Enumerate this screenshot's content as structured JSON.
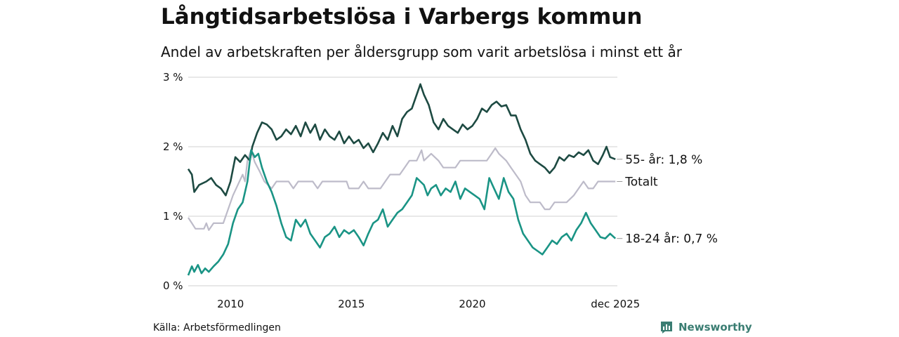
{
  "title": "Långtidsarbetslösa i Varbergs kommun",
  "subtitle": "Andel av arbetskraften per åldersgrupp som varit arbetslösa i minst ett år",
  "source": "Källa: Arbetsförmedlingen",
  "brand": "Newsworthy",
  "colors": {
    "series_55": "#1d4a42",
    "series_total": "#bdbbc9",
    "series_18_24": "#1a9485",
    "grid": "#d9d9d9",
    "brand": "#3a7d72"
  },
  "chart_data": {
    "type": "line",
    "title": "Långtidsarbetslösa i Varbergs kommun",
    "subtitle": "Andel av arbetskraften per åldersgrupp som varit arbetslösa i minst ett år",
    "xlabel": "",
    "ylabel": "",
    "ylim": [
      0,
      3
    ],
    "xlim": [
      2008.25,
      2026.0
    ],
    "grid": true,
    "y_ticks": [
      {
        "value": 0,
        "label": "0 %"
      },
      {
        "value": 1,
        "label": "1 %"
      },
      {
        "value": 2,
        "label": "2 %"
      },
      {
        "value": 3,
        "label": "3 %"
      }
    ],
    "x_ticks": [
      {
        "value": 2010,
        "label": "2010"
      },
      {
        "value": 2015,
        "label": "2015"
      },
      {
        "value": 2020,
        "label": "2020"
      },
      {
        "value": 2025.92,
        "label": "dec 2025"
      }
    ],
    "series": [
      {
        "name": "55- år",
        "end_label": "55- år: 1,8 %",
        "color_key": "series_55",
        "points": [
          [
            2008.25,
            1.68
          ],
          [
            2008.4,
            1.6
          ],
          [
            2008.5,
            1.35
          ],
          [
            2008.7,
            1.45
          ],
          [
            2009.0,
            1.5
          ],
          [
            2009.2,
            1.55
          ],
          [
            2009.4,
            1.45
          ],
          [
            2009.6,
            1.4
          ],
          [
            2009.8,
            1.3
          ],
          [
            2010.0,
            1.5
          ],
          [
            2010.2,
            1.85
          ],
          [
            2010.4,
            1.78
          ],
          [
            2010.6,
            1.88
          ],
          [
            2010.8,
            1.8
          ],
          [
            2010.9,
            2.0
          ],
          [
            2011.1,
            2.2
          ],
          [
            2011.3,
            2.35
          ],
          [
            2011.5,
            2.32
          ],
          [
            2011.7,
            2.25
          ],
          [
            2011.9,
            2.1
          ],
          [
            2012.1,
            2.15
          ],
          [
            2012.3,
            2.25
          ],
          [
            2012.5,
            2.18
          ],
          [
            2012.7,
            2.3
          ],
          [
            2012.9,
            2.15
          ],
          [
            2013.1,
            2.35
          ],
          [
            2013.3,
            2.2
          ],
          [
            2013.5,
            2.32
          ],
          [
            2013.7,
            2.1
          ],
          [
            2013.9,
            2.25
          ],
          [
            2014.1,
            2.15
          ],
          [
            2014.3,
            2.1
          ],
          [
            2014.5,
            2.22
          ],
          [
            2014.7,
            2.05
          ],
          [
            2014.9,
            2.15
          ],
          [
            2015.1,
            2.05
          ],
          [
            2015.3,
            2.1
          ],
          [
            2015.5,
            1.98
          ],
          [
            2015.7,
            2.05
          ],
          [
            2015.9,
            1.92
          ],
          [
            2016.1,
            2.05
          ],
          [
            2016.3,
            2.2
          ],
          [
            2016.5,
            2.1
          ],
          [
            2016.7,
            2.3
          ],
          [
            2016.9,
            2.15
          ],
          [
            2017.1,
            2.4
          ],
          [
            2017.3,
            2.5
          ],
          [
            2017.5,
            2.55
          ],
          [
            2017.7,
            2.75
          ],
          [
            2017.85,
            2.9
          ],
          [
            2018.0,
            2.75
          ],
          [
            2018.2,
            2.6
          ],
          [
            2018.4,
            2.35
          ],
          [
            2018.6,
            2.25
          ],
          [
            2018.8,
            2.4
          ],
          [
            2019.0,
            2.3
          ],
          [
            2019.2,
            2.25
          ],
          [
            2019.4,
            2.2
          ],
          [
            2019.6,
            2.32
          ],
          [
            2019.8,
            2.25
          ],
          [
            2020.0,
            2.3
          ],
          [
            2020.2,
            2.4
          ],
          [
            2020.4,
            2.55
          ],
          [
            2020.6,
            2.5
          ],
          [
            2020.8,
            2.6
          ],
          [
            2021.0,
            2.65
          ],
          [
            2021.2,
            2.58
          ],
          [
            2021.4,
            2.6
          ],
          [
            2021.6,
            2.45
          ],
          [
            2021.8,
            2.45
          ],
          [
            2022.0,
            2.25
          ],
          [
            2022.2,
            2.1
          ],
          [
            2022.4,
            1.9
          ],
          [
            2022.6,
            1.8
          ],
          [
            2022.8,
            1.75
          ],
          [
            2023.0,
            1.7
          ],
          [
            2023.2,
            1.62
          ],
          [
            2023.4,
            1.7
          ],
          [
            2023.6,
            1.85
          ],
          [
            2023.8,
            1.8
          ],
          [
            2024.0,
            1.88
          ],
          [
            2024.2,
            1.85
          ],
          [
            2024.4,
            1.92
          ],
          [
            2024.6,
            1.88
          ],
          [
            2024.8,
            1.95
          ],
          [
            2025.0,
            1.8
          ],
          [
            2025.2,
            1.75
          ],
          [
            2025.4,
            1.88
          ],
          [
            2025.55,
            2.0
          ],
          [
            2025.7,
            1.85
          ],
          [
            2025.92,
            1.82
          ]
        ]
      },
      {
        "name": "Totalt",
        "end_label": "Totalt",
        "color_key": "series_total",
        "points": [
          [
            2008.25,
            0.98
          ],
          [
            2008.4,
            0.9
          ],
          [
            2008.55,
            0.82
          ],
          [
            2008.9,
            0.82
          ],
          [
            2009.0,
            0.9
          ],
          [
            2009.1,
            0.8
          ],
          [
            2009.3,
            0.9
          ],
          [
            2009.7,
            0.9
          ],
          [
            2009.9,
            1.1
          ],
          [
            2010.1,
            1.3
          ],
          [
            2010.3,
            1.45
          ],
          [
            2010.5,
            1.6
          ],
          [
            2010.6,
            1.5
          ],
          [
            2010.7,
            1.8
          ],
          [
            2010.85,
            1.95
          ],
          [
            2011.0,
            1.78
          ],
          [
            2011.2,
            1.65
          ],
          [
            2011.4,
            1.5
          ],
          [
            2011.7,
            1.4
          ],
          [
            2011.9,
            1.5
          ],
          [
            2012.4,
            1.5
          ],
          [
            2012.6,
            1.4
          ],
          [
            2012.8,
            1.5
          ],
          [
            2013.4,
            1.5
          ],
          [
            2013.6,
            1.4
          ],
          [
            2013.8,
            1.5
          ],
          [
            2014.8,
            1.5
          ],
          [
            2014.9,
            1.4
          ],
          [
            2015.3,
            1.4
          ],
          [
            2015.5,
            1.5
          ],
          [
            2015.7,
            1.4
          ],
          [
            2016.2,
            1.4
          ],
          [
            2016.4,
            1.5
          ],
          [
            2016.6,
            1.6
          ],
          [
            2017.0,
            1.6
          ],
          [
            2017.2,
            1.7
          ],
          [
            2017.4,
            1.8
          ],
          [
            2017.7,
            1.8
          ],
          [
            2017.9,
            1.95
          ],
          [
            2018.0,
            1.8
          ],
          [
            2018.3,
            1.9
          ],
          [
            2018.6,
            1.8
          ],
          [
            2018.8,
            1.7
          ],
          [
            2019.3,
            1.7
          ],
          [
            2019.5,
            1.8
          ],
          [
            2019.9,
            1.8
          ],
          [
            2020.3,
            1.8
          ],
          [
            2020.6,
            1.8
          ],
          [
            2020.8,
            1.9
          ],
          [
            2020.95,
            1.98
          ],
          [
            2021.1,
            1.9
          ],
          [
            2021.4,
            1.8
          ],
          [
            2021.6,
            1.7
          ],
          [
            2021.8,
            1.6
          ],
          [
            2022.0,
            1.5
          ],
          [
            2022.2,
            1.3
          ],
          [
            2022.4,
            1.2
          ],
          [
            2022.8,
            1.2
          ],
          [
            2023.0,
            1.1
          ],
          [
            2023.2,
            1.1
          ],
          [
            2023.4,
            1.2
          ],
          [
            2023.6,
            1.2
          ],
          [
            2023.9,
            1.2
          ],
          [
            2024.2,
            1.3
          ],
          [
            2024.4,
            1.4
          ],
          [
            2024.6,
            1.5
          ],
          [
            2024.8,
            1.4
          ],
          [
            2025.0,
            1.4
          ],
          [
            2025.2,
            1.5
          ],
          [
            2025.6,
            1.5
          ],
          [
            2025.92,
            1.5
          ]
        ]
      },
      {
        "name": "18-24 år",
        "end_label": "18-24 år: 0,7 %",
        "color_key": "series_18_24",
        "points": [
          [
            2008.25,
            0.15
          ],
          [
            2008.4,
            0.28
          ],
          [
            2008.5,
            0.2
          ],
          [
            2008.65,
            0.3
          ],
          [
            2008.8,
            0.18
          ],
          [
            2008.95,
            0.25
          ],
          [
            2009.1,
            0.2
          ],
          [
            2009.3,
            0.28
          ],
          [
            2009.5,
            0.35
          ],
          [
            2009.7,
            0.45
          ],
          [
            2009.9,
            0.6
          ],
          [
            2010.1,
            0.9
          ],
          [
            2010.3,
            1.1
          ],
          [
            2010.5,
            1.2
          ],
          [
            2010.7,
            1.5
          ],
          [
            2010.85,
            1.95
          ],
          [
            2011.0,
            1.85
          ],
          [
            2011.15,
            1.9
          ],
          [
            2011.3,
            1.7
          ],
          [
            2011.5,
            1.5
          ],
          [
            2011.7,
            1.35
          ],
          [
            2011.9,
            1.15
          ],
          [
            2012.1,
            0.9
          ],
          [
            2012.3,
            0.7
          ],
          [
            2012.5,
            0.65
          ],
          [
            2012.7,
            0.95
          ],
          [
            2012.9,
            0.85
          ],
          [
            2013.1,
            0.95
          ],
          [
            2013.3,
            0.75
          ],
          [
            2013.5,
            0.65
          ],
          [
            2013.7,
            0.55
          ],
          [
            2013.9,
            0.7
          ],
          [
            2014.1,
            0.75
          ],
          [
            2014.3,
            0.85
          ],
          [
            2014.5,
            0.7
          ],
          [
            2014.7,
            0.8
          ],
          [
            2014.9,
            0.75
          ],
          [
            2015.1,
            0.8
          ],
          [
            2015.3,
            0.7
          ],
          [
            2015.5,
            0.58
          ],
          [
            2015.7,
            0.75
          ],
          [
            2015.9,
            0.9
          ],
          [
            2016.1,
            0.95
          ],
          [
            2016.3,
            1.1
          ],
          [
            2016.5,
            0.85
          ],
          [
            2016.7,
            0.95
          ],
          [
            2016.9,
            1.05
          ],
          [
            2017.1,
            1.1
          ],
          [
            2017.3,
            1.2
          ],
          [
            2017.5,
            1.3
          ],
          [
            2017.7,
            1.55
          ],
          [
            2017.85,
            1.5
          ],
          [
            2018.0,
            1.45
          ],
          [
            2018.15,
            1.3
          ],
          [
            2018.3,
            1.4
          ],
          [
            2018.5,
            1.45
          ],
          [
            2018.7,
            1.3
          ],
          [
            2018.9,
            1.4
          ],
          [
            2019.1,
            1.35
          ],
          [
            2019.3,
            1.5
          ],
          [
            2019.5,
            1.25
          ],
          [
            2019.7,
            1.4
          ],
          [
            2019.9,
            1.35
          ],
          [
            2020.1,
            1.3
          ],
          [
            2020.3,
            1.25
          ],
          [
            2020.5,
            1.1
          ],
          [
            2020.7,
            1.55
          ],
          [
            2020.9,
            1.4
          ],
          [
            2021.1,
            1.25
          ],
          [
            2021.3,
            1.55
          ],
          [
            2021.5,
            1.35
          ],
          [
            2021.7,
            1.25
          ],
          [
            2021.9,
            0.95
          ],
          [
            2022.1,
            0.75
          ],
          [
            2022.3,
            0.65
          ],
          [
            2022.5,
            0.55
          ],
          [
            2022.7,
            0.5
          ],
          [
            2022.9,
            0.45
          ],
          [
            2023.1,
            0.55
          ],
          [
            2023.3,
            0.65
          ],
          [
            2023.5,
            0.6
          ],
          [
            2023.7,
            0.7
          ],
          [
            2023.9,
            0.75
          ],
          [
            2024.1,
            0.65
          ],
          [
            2024.3,
            0.8
          ],
          [
            2024.5,
            0.9
          ],
          [
            2024.7,
            1.05
          ],
          [
            2024.9,
            0.9
          ],
          [
            2025.1,
            0.8
          ],
          [
            2025.3,
            0.7
          ],
          [
            2025.5,
            0.68
          ],
          [
            2025.7,
            0.75
          ],
          [
            2025.92,
            0.68
          ]
        ]
      }
    ]
  }
}
